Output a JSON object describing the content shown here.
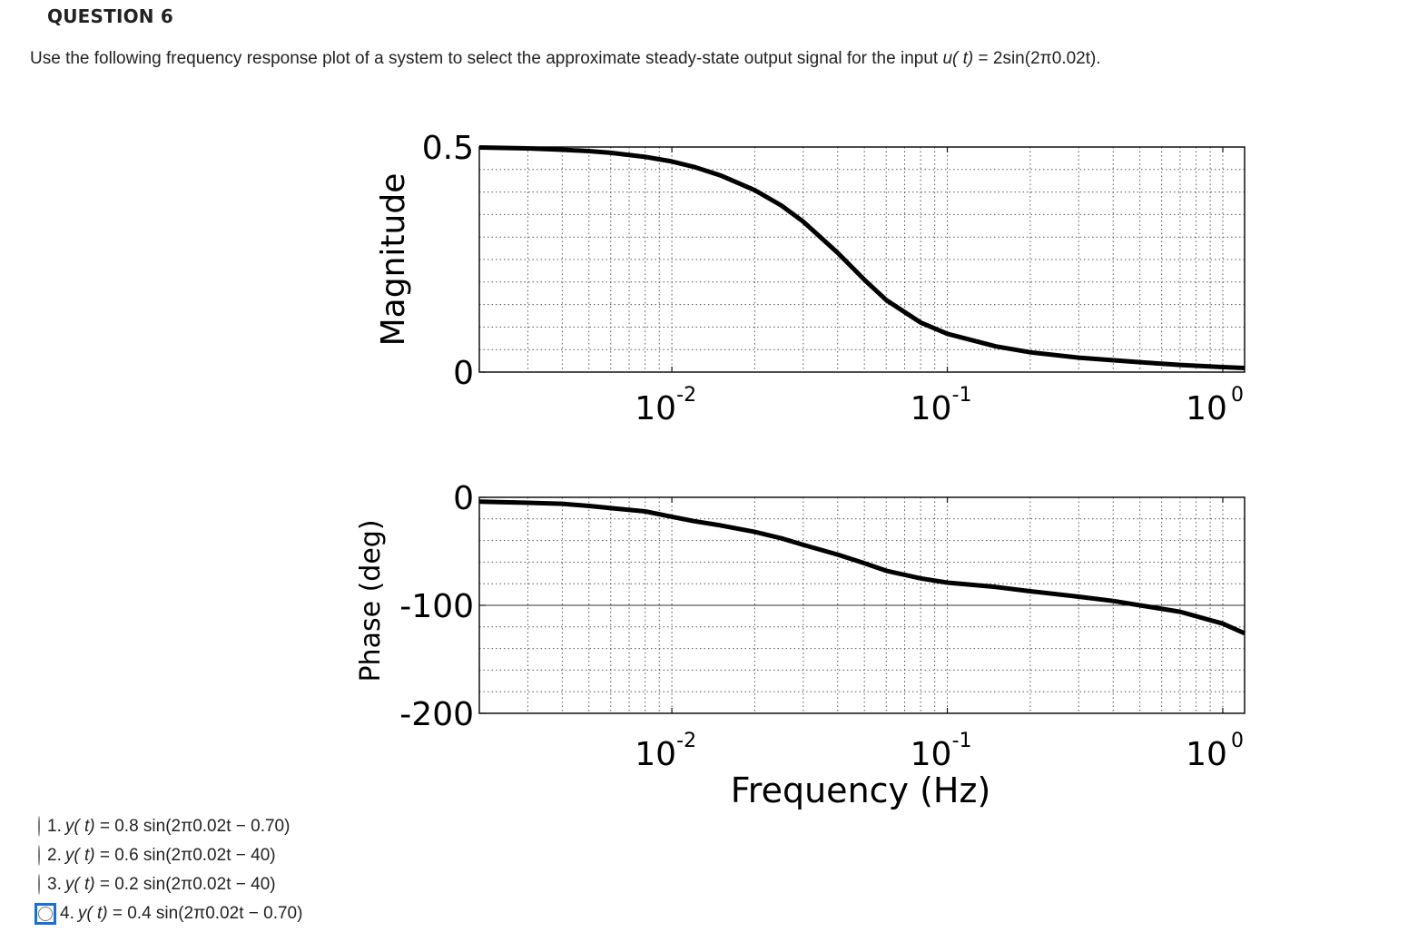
{
  "question": {
    "title": "QUESTION 6",
    "text_before": "Use the following frequency response plot of a system to select the approximate steady-state output signal for the input ",
    "text_var": "u( t)",
    "text_after": " = 2sin(2π0.02t)."
  },
  "chart_data": [
    {
      "type": "line",
      "ylabel": "Magnitude",
      "xlabel": "",
      "xscale": "log",
      "xlim": [
        0.002,
        1.2
      ],
      "ylim": [
        0,
        0.5
      ],
      "yticks": [
        0,
        0.5
      ],
      "ytick_labels": [
        "0",
        "0.5"
      ],
      "xtick_labels": [
        "10",
        "10",
        "10"
      ],
      "xtick_exponents": [
        "-2",
        "-1",
        "0"
      ],
      "xticks": [
        0.01,
        0.1,
        1
      ],
      "grid": true,
      "series": [
        {
          "x": [
            0.002,
            0.003,
            0.004,
            0.005,
            0.006,
            0.008,
            0.01,
            0.012,
            0.015,
            0.02,
            0.025,
            0.03,
            0.04,
            0.05,
            0.06,
            0.08,
            0.1,
            0.15,
            0.2,
            0.3,
            0.5,
            0.7,
            1.0,
            1.2
          ],
          "y": [
            0.499,
            0.497,
            0.494,
            0.491,
            0.487,
            0.478,
            0.468,
            0.456,
            0.437,
            0.404,
            0.37,
            0.334,
            0.265,
            0.205,
            0.16,
            0.11,
            0.085,
            0.057,
            0.044,
            0.032,
            0.022,
            0.016,
            0.011,
            0.009
          ]
        }
      ]
    },
    {
      "type": "line",
      "ylabel": "Phase (deg)",
      "xlabel": "Frequency (Hz)",
      "xscale": "log",
      "xlim": [
        0.002,
        1.2
      ],
      "ylim": [
        -200,
        0
      ],
      "yticks": [
        0,
        -100,
        -200
      ],
      "ytick_labels": [
        "0",
        "-100",
        "-200"
      ],
      "xtick_labels": [
        "10",
        "10",
        "10"
      ],
      "xtick_exponents": [
        "-2",
        "-1",
        "0"
      ],
      "xticks": [
        0.01,
        0.1,
        1
      ],
      "grid": true,
      "series": [
        {
          "x": [
            0.002,
            0.003,
            0.004,
            0.005,
            0.006,
            0.008,
            0.01,
            0.012,
            0.015,
            0.02,
            0.025,
            0.03,
            0.04,
            0.05,
            0.06,
            0.08,
            0.1,
            0.15,
            0.2,
            0.3,
            0.4,
            0.5,
            0.7,
            1.0,
            1.2
          ],
          "y": [
            -4,
            -5,
            -6,
            -8,
            -10,
            -13,
            -18,
            -22,
            -26,
            -32,
            -38,
            -44,
            -53,
            -61,
            -68,
            -75,
            -79,
            -83,
            -87,
            -92,
            -96,
            -100,
            -106,
            -117,
            -126
          ]
        }
      ]
    }
  ],
  "options": [
    {
      "num": "1.",
      "var": "y( t)",
      "rest": " = 0.8 sin(2π0.02t − 0.70)",
      "focused": false
    },
    {
      "num": "2.",
      "var": "y( t)",
      "rest": " = 0.6 sin(2π0.02t − 40)",
      "focused": false
    },
    {
      "num": "3.",
      "var": "y( t)",
      "rest": " = 0.2 sin(2π0.02t − 40)",
      "focused": false
    },
    {
      "num": "4.",
      "var": "y( t)",
      "rest": " = 0.4 sin(2π0.02t − 0.70)",
      "focused": true
    }
  ]
}
